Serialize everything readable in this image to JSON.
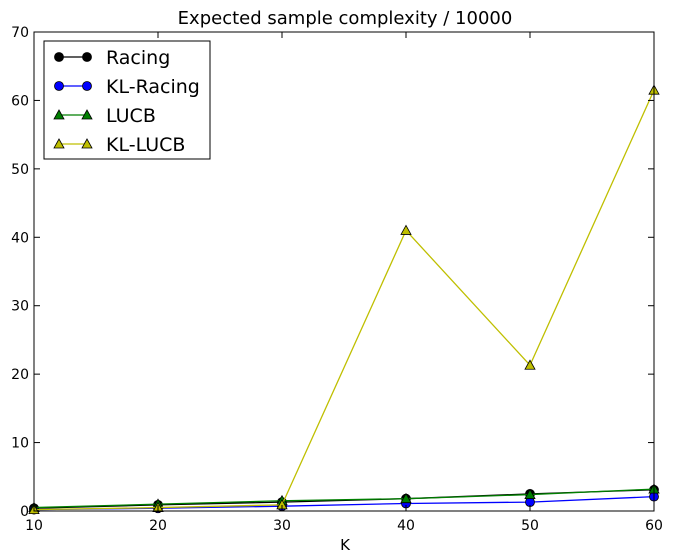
{
  "chart_data": {
    "type": "line",
    "title": "Expected sample complexity / 10000",
    "xlabel": "K",
    "ylabel": "",
    "x": [
      10,
      20,
      30,
      40,
      50,
      60
    ],
    "xlim": [
      10,
      60
    ],
    "ylim": [
      0,
      70
    ],
    "xticks": [
      "10",
      "20",
      "30",
      "40",
      "50",
      "60"
    ],
    "yticks": [
      "0",
      "10",
      "20",
      "30",
      "40",
      "50",
      "60",
      "70"
    ],
    "grid": false,
    "legend_position": "upper-left",
    "series": [
      {
        "name": "Racing",
        "color": "#000000",
        "marker": "circle",
        "values": [
          0.4,
          0.9,
          1.3,
          1.8,
          2.5,
          3.1
        ]
      },
      {
        "name": "KL-Racing",
        "color": "#0000ff",
        "marker": "circle",
        "values": [
          0.2,
          0.4,
          0.7,
          1.1,
          1.3,
          2.1
        ]
      },
      {
        "name": "LUCB",
        "color": "#007f00",
        "marker": "triangle",
        "values": [
          0.5,
          1.0,
          1.5,
          1.8,
          2.4,
          3.2
        ]
      },
      {
        "name": "KL-LUCB",
        "color": "#bfbf00",
        "marker": "triangle",
        "values": [
          0.2,
          0.5,
          0.9,
          41.0,
          21.3,
          61.5
        ]
      }
    ]
  }
}
